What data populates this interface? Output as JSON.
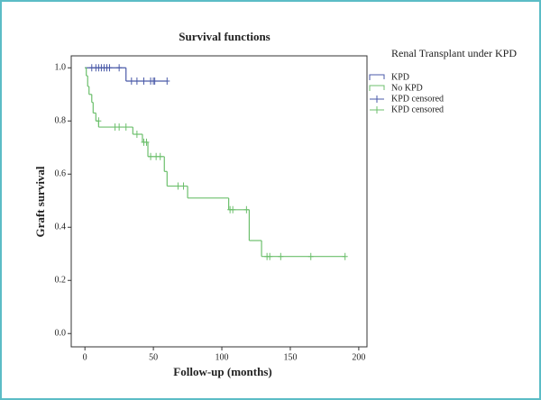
{
  "chart_data": {
    "type": "step",
    "title": "Survival functions",
    "legend_title": "Renal Transplant under KPD",
    "legend_position": "right",
    "xlabel": "Follow-up (months)",
    "ylabel": "Graft survival",
    "xlim": [
      -10,
      206
    ],
    "ylim": [
      -0.05,
      1.045
    ],
    "xticks": [
      0,
      50,
      100,
      150,
      200
    ],
    "yticks": [
      {
        "value": 0,
        "label": "0.0"
      },
      0.2,
      0.4,
      0.6,
      0.8,
      {
        "value": 1,
        "label": "1.0"
      }
    ],
    "series": [
      {
        "name": "KPD",
        "color": "#4a5aa8",
        "x": [
          0,
          30,
          60
        ],
        "values": [
          1,
          0.95,
          0.95
        ]
      },
      {
        "name": "No KPD",
        "color": "#6cbf6c",
        "x": [
          0,
          1,
          2,
          3,
          5,
          6,
          8,
          10,
          35,
          42,
          46,
          58,
          60,
          75,
          105,
          120,
          129,
          190
        ],
        "values": [
          1,
          0.97,
          0.93,
          0.9,
          0.87,
          0.83,
          0.8,
          0.777,
          0.75,
          0.72,
          0.666,
          0.61,
          0.555,
          0.51,
          0.466,
          0.35,
          0.29,
          0.29
        ]
      },
      {
        "name": "KPD censored",
        "color": "#4a5aa8",
        "marker": "+",
        "x": [
          5,
          8,
          10,
          12,
          14,
          16,
          18,
          25,
          34,
          38,
          43,
          48,
          50,
          51,
          60
        ],
        "values": [
          1,
          1,
          1,
          1,
          1,
          1,
          1,
          1,
          0.95,
          0.95,
          0.95,
          0.95,
          0.95,
          0.95,
          0.95
        ]
      },
      {
        "name": "KPD censored",
        "color": "#6cbf6c",
        "marker": "+",
        "x": [
          10,
          22,
          25,
          30,
          38,
          43,
          45,
          48,
          52,
          55,
          68,
          72,
          106,
          108,
          118,
          133,
          135,
          143,
          165,
          190
        ],
        "values": [
          0.8,
          0.777,
          0.777,
          0.777,
          0.75,
          0.72,
          0.72,
          0.666,
          0.666,
          0.666,
          0.555,
          0.555,
          0.466,
          0.466,
          0.466,
          0.29,
          0.29,
          0.29,
          0.29,
          0.29
        ]
      }
    ]
  }
}
